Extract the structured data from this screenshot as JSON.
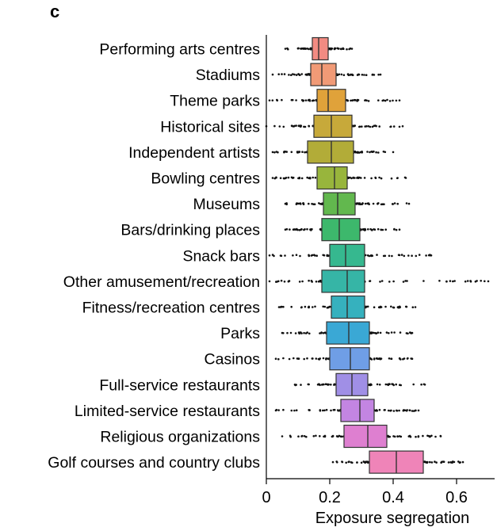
{
  "panel_label": "c",
  "chart_data": {
    "type": "box",
    "orientation": "horizontal",
    "xlabel": "Exposure segregation",
    "xlim": [
      0,
      0.72
    ],
    "xticks": [
      0,
      0.2,
      0.4,
      0.6
    ],
    "xtick_labels": [
      "0",
      "0.2",
      "0.4",
      "0.6"
    ],
    "grid": false,
    "categories": [
      "Performing arts centres",
      "Stadiums",
      "Theme parks",
      "Historical sites",
      "Independent artists",
      "Bowling centres",
      "Museums",
      "Bars/drinking places",
      "Snack bars",
      "Other amusement/recreation",
      "Fitness/recreation centres",
      "Parks",
      "Casinos",
      "Full-service restaurants",
      "Limited-service restaurants",
      "Religious organizations",
      "Golf courses and country clubs"
    ],
    "boxes": [
      {
        "q1": 0.145,
        "median": 0.165,
        "q3": 0.195,
        "whisker_low": 0.06,
        "whisker_high": 0.27,
        "color": "#f28b82"
      },
      {
        "q1": 0.14,
        "median": 0.175,
        "q3": 0.22,
        "whisker_low": 0.02,
        "whisker_high": 0.36,
        "color": "#f19a76"
      },
      {
        "q1": 0.16,
        "median": 0.195,
        "q3": 0.25,
        "whisker_low": 0.01,
        "whisker_high": 0.42,
        "color": "#e0a23a"
      },
      {
        "q1": 0.15,
        "median": 0.205,
        "q3": 0.27,
        "whisker_low": 0.0,
        "whisker_high": 0.43,
        "color": "#c7a93a"
      },
      {
        "q1": 0.13,
        "median": 0.205,
        "q3": 0.275,
        "whisker_low": 0.02,
        "whisker_high": 0.4,
        "color": "#b2ac38"
      },
      {
        "q1": 0.16,
        "median": 0.215,
        "q3": 0.255,
        "whisker_low": 0.02,
        "whisker_high": 0.44,
        "color": "#98b53c"
      },
      {
        "q1": 0.18,
        "median": 0.225,
        "q3": 0.28,
        "whisker_low": 0.06,
        "whisker_high": 0.45,
        "color": "#62b84e"
      },
      {
        "q1": 0.175,
        "median": 0.23,
        "q3": 0.295,
        "whisker_low": 0.06,
        "whisker_high": 0.42,
        "color": "#3db86c"
      },
      {
        "q1": 0.2,
        "median": 0.25,
        "q3": 0.31,
        "whisker_low": 0.01,
        "whisker_high": 0.52,
        "color": "#36b88f"
      },
      {
        "q1": 0.175,
        "median": 0.255,
        "q3": 0.31,
        "whisker_low": 0.01,
        "whisker_high": 0.7,
        "color": "#36b5a6"
      },
      {
        "q1": 0.205,
        "median": 0.255,
        "q3": 0.31,
        "whisker_low": 0.04,
        "whisker_high": 0.47,
        "color": "#36b1be"
      },
      {
        "q1": 0.19,
        "median": 0.26,
        "q3": 0.325,
        "whisker_low": 0.05,
        "whisker_high": 0.46,
        "color": "#3aa8d5"
      },
      {
        "q1": 0.2,
        "median": 0.265,
        "q3": 0.325,
        "whisker_low": 0.03,
        "whisker_high": 0.46,
        "color": "#6f9ee6"
      },
      {
        "q1": 0.22,
        "median": 0.27,
        "q3": 0.32,
        "whisker_low": 0.09,
        "whisker_high": 0.5,
        "color": "#a08fe6"
      },
      {
        "q1": 0.235,
        "median": 0.295,
        "q3": 0.34,
        "whisker_low": 0.03,
        "whisker_high": 0.48,
        "color": "#c385e2"
      },
      {
        "q1": 0.245,
        "median": 0.32,
        "q3": 0.38,
        "whisker_low": 0.05,
        "whisker_high": 0.55,
        "color": "#de7fd0"
      },
      {
        "q1": 0.325,
        "median": 0.41,
        "q3": 0.495,
        "whisker_low": 0.21,
        "whisker_high": 0.62,
        "color": "#ef84b8"
      }
    ]
  }
}
